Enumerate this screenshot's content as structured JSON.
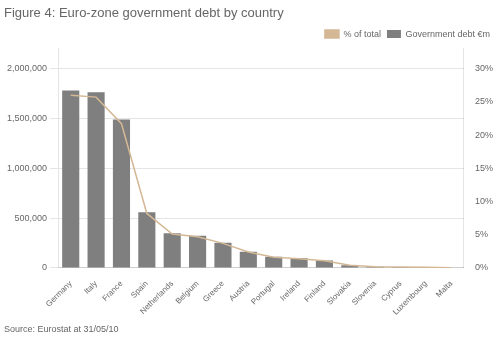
{
  "chart_data": {
    "type": "bar",
    "title": "Figure 4: Euro-zone government debt by country",
    "annotations": [
      "Source: Eurostat at 31/05/10"
    ],
    "categories": [
      "Germany",
      "Italy",
      "France",
      "Spain",
      "Netherlands",
      "Belgium",
      "Greece",
      "Austria",
      "Portugal",
      "Ireland",
      "Finland",
      "Slovakia",
      "Slovenia",
      "Cyprus",
      "Luxembourg",
      "Malta"
    ],
    "series": [
      {
        "name": "Government debt €m",
        "type": "bar",
        "color": "#7F7F7F",
        "values": [
          1780000,
          1763000,
          1489000,
          560000,
          347000,
          324000,
          252000,
          163000,
          112000,
          98000,
          75000,
          27000,
          13000,
          10000,
          7000,
          3500
        ]
      },
      {
        "name": "% of total",
        "type": "line",
        "color": "#D4B896",
        "axis": "y2",
        "values": [
          26.0,
          25.7,
          21.7,
          8.2,
          5.1,
          4.7,
          3.7,
          2.4,
          1.6,
          1.4,
          1.1,
          0.4,
          0.19,
          0.15,
          0.1,
          0.05
        ]
      }
    ],
    "ylim": [
      0,
      2200000
    ],
    "yticks": [
      0,
      {
        "value": 500000,
        "label": "500,000"
      },
      {
        "value": 1000000,
        "label": "1,000,000"
      },
      {
        "value": 1500000,
        "label": "1,500,000"
      },
      {
        "value": 2000000,
        "label": "2,000,000"
      }
    ],
    "y2lim": [
      0,
      33
    ],
    "y2ticks": [
      {
        "value": 0,
        "label": "0%"
      },
      {
        "value": 5,
        "label": "5%"
      },
      {
        "value": 10,
        "label": "10%"
      },
      {
        "value": 15,
        "label": "15%"
      },
      {
        "value": 20,
        "label": "20%"
      },
      {
        "value": 25,
        "label": "25%"
      },
      {
        "value": 30,
        "label": "30%"
      }
    ],
    "grid": true,
    "legend": "upper right"
  }
}
